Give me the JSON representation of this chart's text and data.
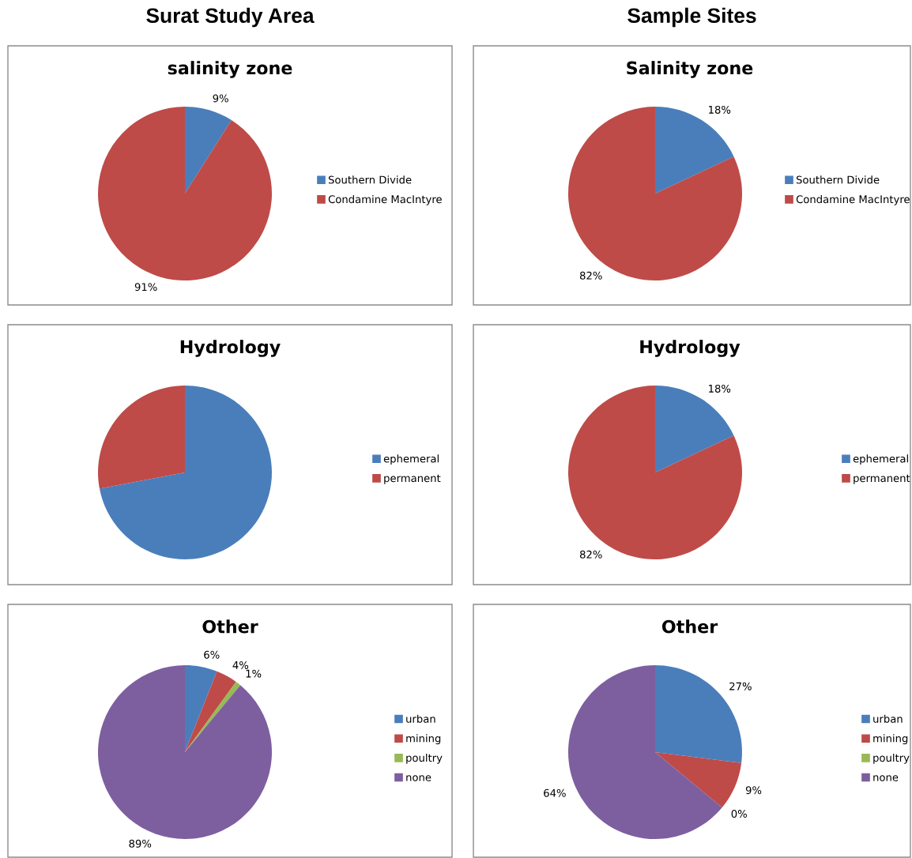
{
  "chart_data": [
    {
      "type": "pie",
      "title": "salinity zone",
      "annotations": [
        "Surat Study Area"
      ],
      "categories": [
        "Southern Divide",
        "Condamine MacIntyre"
      ],
      "values": [
        9,
        91
      ],
      "colors": [
        "#4a7ebb",
        "#be4b48"
      ],
      "value_labels": [
        "9%",
        "91%"
      ],
      "legend": "right"
    },
    {
      "type": "pie",
      "title": "Salinity zone",
      "annotations": [
        "Sample Sites"
      ],
      "categories": [
        "Southern Divide",
        "Condamine MacIntyre"
      ],
      "values": [
        18,
        82
      ],
      "colors": [
        "#4a7ebb",
        "#be4b48"
      ],
      "value_labels": [
        "18%",
        "82%"
      ],
      "legend": "right"
    },
    {
      "type": "pie",
      "title": "Hydrology",
      "categories": [
        "ephemeral",
        "permanent"
      ],
      "values": [
        72,
        28
      ],
      "colors": [
        "#4a7ebb",
        "#be4b48"
      ],
      "legend": "right"
    },
    {
      "type": "pie",
      "title": "Hydrology",
      "categories": [
        "ephemeral",
        "permanent"
      ],
      "values": [
        18,
        82
      ],
      "colors": [
        "#4a7ebb",
        "#be4b48"
      ],
      "value_labels": [
        "18%",
        "82%"
      ],
      "legend": "right"
    },
    {
      "type": "pie",
      "title": "Other",
      "categories": [
        "urban",
        "mining",
        "poultry",
        "none"
      ],
      "values": [
        6,
        4,
        1,
        89
      ],
      "colors": [
        "#4a7ebb",
        "#be4b48",
        "#98b954",
        "#7d5fa0"
      ],
      "value_labels": [
        "6%",
        "4%",
        "1%",
        "89%"
      ],
      "legend": "right"
    },
    {
      "type": "pie",
      "title": "Other",
      "categories": [
        "urban",
        "mining",
        "poultry",
        "none"
      ],
      "values": [
        27,
        9,
        0,
        64
      ],
      "colors": [
        "#4a7ebb",
        "#be4b48",
        "#98b954",
        "#7d5fa0"
      ],
      "value_labels": [
        "27%",
        "9%",
        "0%",
        "64%"
      ],
      "legend": "right"
    }
  ]
}
